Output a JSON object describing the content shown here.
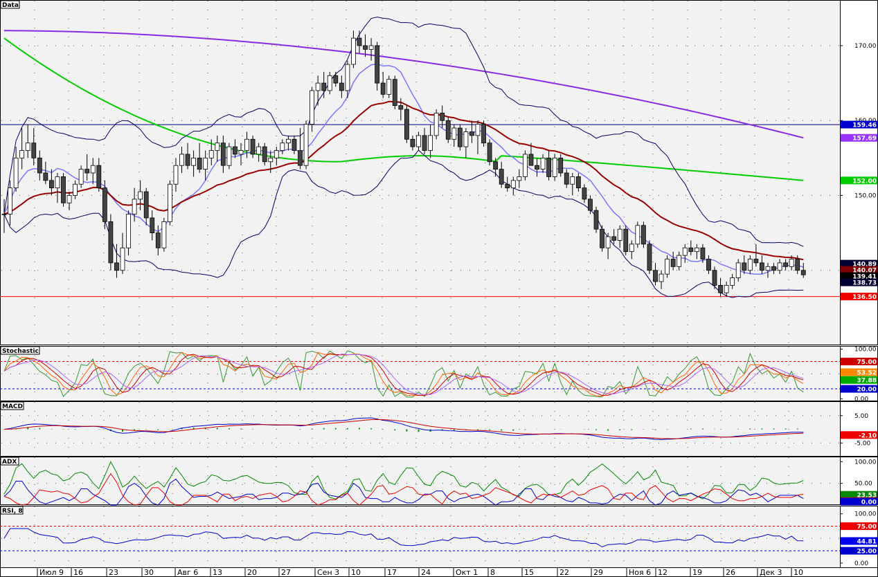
{
  "chart_data": [
    {
      "panel": "Data",
      "type": "candlestick",
      "title": "Data",
      "ylim": [
        130,
        176
      ],
      "y_ticks": [
        150.0,
        160.0,
        170.0
      ],
      "candles": [
        [
          147.5,
          149.5,
          145.0,
          147.5
        ],
        [
          147.5,
          152.0,
          146.0,
          151.0
        ],
        [
          151.0,
          156.5,
          150.5,
          155.0
        ],
        [
          155.0,
          159.0,
          153.5,
          156.0
        ],
        [
          156.0,
          159.5,
          155.0,
          157.0
        ],
        [
          157.0,
          159.0,
          154.0,
          155.0
        ],
        [
          155.0,
          156.0,
          152.0,
          153.0
        ],
        [
          153.0,
          154.5,
          151.5,
          152.0
        ],
        [
          152.0,
          153.5,
          150.0,
          151.0
        ],
        [
          151.0,
          153.0,
          149.0,
          152.5
        ],
        [
          152.5,
          153.0,
          148.5,
          149.0
        ],
        [
          149.0,
          150.5,
          148.0,
          150.0
        ],
        [
          150.0,
          152.0,
          149.5,
          151.5
        ],
        [
          151.5,
          154.0,
          151.0,
          153.5
        ],
        [
          153.5,
          155.5,
          152.0,
          153.0
        ],
        [
          153.0,
          155.0,
          151.5,
          154.0
        ],
        [
          154.0,
          155.0,
          150.5,
          151.0
        ],
        [
          151.0,
          152.0,
          145.5,
          146.5
        ],
        [
          146.5,
          147.5,
          140.0,
          141.0
        ],
        [
          141.0,
          143.5,
          139.0,
          140.0
        ],
        [
          140.0,
          145.0,
          139.5,
          143.0
        ],
        [
          143.0,
          148.0,
          142.0,
          147.5
        ],
        [
          147.5,
          151.0,
          146.5,
          149.5
        ],
        [
          149.5,
          152.0,
          148.0,
          150.5
        ],
        [
          150.5,
          151.0,
          146.0,
          147.0
        ],
        [
          147.0,
          148.0,
          144.0,
          145.0
        ],
        [
          145.0,
          146.0,
          142.0,
          143.0
        ],
        [
          143.0,
          147.0,
          142.5,
          146.5
        ],
        [
          146.5,
          152.0,
          146.0,
          151.5
        ],
        [
          151.5,
          155.0,
          150.5,
          154.0
        ],
        [
          154.0,
          156.5,
          153.0,
          155.5
        ],
        [
          155.5,
          157.0,
          153.5,
          154.0
        ],
        [
          154.0,
          156.0,
          152.5,
          155.0
        ],
        [
          155.0,
          157.0,
          153.0,
          153.5
        ],
        [
          153.5,
          156.0,
          152.0,
          155.0
        ],
        [
          155.0,
          157.5,
          154.0,
          156.0
        ],
        [
          156.0,
          158.0,
          154.5,
          157.0
        ],
        [
          157.0,
          158.0,
          153.0,
          154.0
        ],
        [
          154.0,
          157.0,
          153.5,
          156.5
        ],
        [
          156.5,
          157.5,
          155.0,
          155.5
        ],
        [
          155.5,
          157.0,
          154.0,
          156.0
        ],
        [
          156.0,
          158.5,
          155.0,
          157.5
        ],
        [
          157.5,
          158.0,
          155.0,
          155.5
        ],
        [
          155.5,
          157.0,
          154.5,
          156.5
        ],
        [
          156.5,
          157.0,
          154.0,
          154.5
        ],
        [
          154.5,
          156.0,
          153.0,
          155.0
        ],
        [
          155.0,
          156.5,
          154.0,
          156.0
        ],
        [
          156.0,
          157.5,
          155.5,
          157.0
        ],
        [
          157.0,
          158.0,
          156.0,
          157.5
        ],
        [
          157.5,
          158.0,
          155.5,
          156.0
        ],
        [
          156.0,
          159.0,
          153.5,
          154.0
        ],
        [
          154.0,
          160.0,
          153.5,
          159.5
        ],
        [
          159.5,
          164.5,
          158.5,
          164.0
        ],
        [
          164.0,
          166.0,
          162.0,
          165.0
        ],
        [
          165.0,
          166.5,
          163.0,
          164.0
        ],
        [
          164.0,
          166.5,
          163.5,
          166.0
        ],
        [
          166.0,
          166.5,
          164.5,
          165.0
        ],
        [
          165.0,
          166.0,
          163.0,
          164.0
        ],
        [
          164.0,
          168.0,
          163.0,
          167.5
        ],
        [
          167.5,
          172.0,
          167.0,
          171.0
        ],
        [
          171.0,
          172.0,
          169.0,
          170.0
        ],
        [
          170.0,
          171.5,
          168.5,
          169.5
        ],
        [
          169.5,
          171.0,
          168.0,
          170.0
        ],
        [
          170.0,
          170.5,
          164.0,
          165.0
        ],
        [
          165.0,
          166.5,
          163.0,
          163.5
        ],
        [
          163.5,
          166.0,
          163.0,
          165.5
        ],
        [
          165.5,
          166.0,
          161.5,
          162.0
        ],
        [
          162.0,
          163.0,
          160.0,
          161.5
        ],
        [
          161.5,
          162.0,
          157.0,
          157.5
        ],
        [
          157.5,
          158.0,
          156.0,
          156.5
        ],
        [
          156.5,
          158.5,
          156.0,
          158.0
        ],
        [
          158.0,
          159.0,
          155.5,
          156.0
        ],
        [
          156.0,
          159.5,
          155.0,
          158.0
        ],
        [
          158.0,
          161.5,
          157.5,
          161.0
        ],
        [
          161.0,
          162.0,
          159.0,
          160.0
        ],
        [
          160.0,
          160.5,
          157.0,
          157.5
        ],
        [
          157.5,
          159.5,
          156.5,
          159.0
        ],
        [
          159.0,
          159.5,
          156.0,
          156.5
        ],
        [
          156.5,
          159.0,
          155.0,
          158.5
        ],
        [
          158.5,
          160.0,
          157.0,
          158.0
        ],
        [
          158.0,
          160.0,
          155.5,
          159.5
        ],
        [
          159.5,
          160.0,
          156.5,
          157.0
        ],
        [
          157.0,
          157.5,
          154.0,
          154.5
        ],
        [
          154.5,
          155.0,
          152.5,
          153.5
        ],
        [
          153.5,
          154.5,
          151.0,
          151.5
        ],
        [
          151.5,
          152.5,
          150.5,
          151.0
        ],
        [
          151.0,
          152.5,
          150.0,
          152.0
        ],
        [
          152.0,
          153.5,
          151.0,
          152.5
        ],
        [
          152.5,
          156.0,
          152.0,
          155.5
        ],
        [
          155.5,
          157.0,
          154.0,
          154.0
        ],
        [
          154.0,
          155.0,
          152.5,
          153.5
        ],
        [
          153.5,
          155.5,
          153.0,
          155.0
        ],
        [
          155.0,
          156.0,
          152.0,
          152.5
        ],
        [
          152.5,
          155.5,
          152.0,
          155.0
        ],
        [
          155.0,
          155.5,
          152.5,
          153.0
        ],
        [
          153.0,
          153.5,
          151.0,
          151.5
        ],
        [
          151.5,
          153.0,
          150.0,
          152.5
        ],
        [
          152.5,
          153.0,
          150.5,
          151.0
        ],
        [
          151.0,
          151.5,
          149.0,
          149.5
        ],
        [
          149.5,
          150.0,
          147.5,
          148.0
        ],
        [
          148.0,
          148.5,
          145.0,
          145.5
        ],
        [
          145.5,
          146.0,
          142.5,
          143.0
        ],
        [
          143.0,
          145.0,
          141.5,
          144.5
        ],
        [
          144.5,
          145.5,
          143.5,
          144.0
        ],
        [
          144.0,
          146.0,
          143.0,
          145.5
        ],
        [
          145.5,
          146.0,
          142.0,
          142.5
        ],
        [
          142.5,
          144.0,
          141.5,
          143.5
        ],
        [
          143.5,
          146.5,
          143.0,
          146.0
        ],
        [
          146.0,
          146.5,
          143.0,
          143.5
        ],
        [
          143.5,
          144.0,
          139.5,
          140.0
        ],
        [
          140.0,
          141.0,
          138.0,
          138.5
        ],
        [
          138.5,
          140.0,
          137.5,
          139.5
        ],
        [
          139.5,
          142.0,
          139.0,
          141.5
        ],
        [
          141.5,
          142.5,
          140.0,
          140.5
        ],
        [
          140.5,
          142.5,
          140.0,
          142.0
        ],
        [
          142.0,
          143.5,
          141.0,
          143.0
        ],
        [
          143.0,
          144.0,
          142.0,
          142.5
        ],
        [
          142.5,
          143.5,
          141.5,
          143.0
        ],
        [
          143.0,
          143.5,
          141.0,
          141.5
        ],
        [
          141.5,
          142.0,
          139.5,
          140.0
        ],
        [
          140.0,
          140.5,
          137.5,
          138.0
        ],
        [
          138.0,
          139.0,
          136.5,
          137.0
        ],
        [
          137.0,
          138.5,
          136.5,
          138.0
        ],
        [
          138.0,
          139.5,
          137.5,
          139.0
        ],
        [
          139.0,
          141.5,
          138.5,
          141.0
        ],
        [
          141.0,
          142.0,
          139.5,
          140.0
        ],
        [
          140.0,
          142.0,
          139.5,
          141.5
        ],
        [
          141.5,
          143.5,
          140.5,
          141.0
        ],
        [
          141.0,
          142.0,
          139.5,
          140.0
        ],
        [
          140.0,
          141.0,
          139.0,
          140.5
        ],
        [
          140.5,
          141.0,
          139.5,
          140.0
        ],
        [
          140.0,
          141.5,
          139.5,
          141.0
        ],
        [
          141.0,
          141.5,
          140.0,
          140.5
        ],
        [
          140.5,
          142.0,
          140.0,
          141.5
        ],
        [
          141.5,
          142.0,
          139.5,
          140.0
        ],
        [
          140.0,
          141.0,
          139.0,
          139.4
        ]
      ],
      "sma_long": {
        "name": "",
        "color": "#8a2be2",
        "start": 172.0,
        "end": 157.69
      },
      "sma_mid": {
        "name": "",
        "color": "#00cc00",
        "start": 171.0,
        "end": 152.0
      },
      "hlines": [
        {
          "value": 159.46,
          "color": "#000080"
        },
        {
          "value": 136.5,
          "color": "#ff0000"
        }
      ],
      "markers": [
        {
          "value": "159.46",
          "num": 159.46,
          "color": "#0000cc"
        },
        {
          "value": "157.69",
          "num": 157.69,
          "color": "#9933ff"
        },
        {
          "value": "152.00",
          "num": 152.0,
          "color": "#00cc00"
        },
        {
          "value": "140.89",
          "num": 140.89,
          "color": "#000033"
        },
        {
          "value": "140.07",
          "num": 140.07,
          "color": "#800000"
        },
        {
          "value": "139.41",
          "num": 139.41,
          "color": "#000000"
        },
        {
          "value": "138.73",
          "num": 138.73,
          "color": "#000033"
        },
        {
          "value": "136.50",
          "num": 136.5,
          "color": "#ee0000"
        }
      ]
    },
    {
      "panel": "Stochastic",
      "type": "line",
      "title": "Stochastic",
      "ylim": [
        -5,
        105
      ],
      "y_ticks": [
        "100.00",
        "0.00"
      ],
      "levels": [
        {
          "value": 75,
          "color": "#cc0000"
        },
        {
          "value": 20,
          "color": "#0000cc"
        }
      ],
      "markers": [
        {
          "value": "75.00",
          "num": 75,
          "color": "#cc0000"
        },
        {
          "value": "53.52",
          "num": 53.52,
          "color": "#ff8800"
        },
        {
          "value": "37.88",
          "num": 37.88,
          "color": "#00aa00"
        },
        {
          "value": "20.00",
          "num": 20,
          "color": "#0000cc"
        }
      ]
    },
    {
      "panel": "MACD",
      "type": "line",
      "title": "MACD",
      "ylim": [
        -10,
        10
      ],
      "y_ticks": [
        "5.00",
        "-5.00"
      ],
      "markers": [
        {
          "value": "-2.10",
          "num": -2.1,
          "color": "#ee0000"
        }
      ]
    },
    {
      "panel": "ADX",
      "type": "line",
      "title": "ADX",
      "ylim": [
        0,
        110
      ],
      "y_ticks": [
        "100.00",
        "50.00"
      ],
      "markers": [
        {
          "value": "23.53",
          "num": 23.53,
          "color": "#008800"
        },
        {
          "value": "13.27",
          "num": 13.27,
          "color": "#ee0000"
        },
        {
          "value": "0.00",
          "num": 0,
          "color": "#0000cc"
        }
      ]
    },
    {
      "panel": "RSI",
      "type": "line",
      "title": "RSI, 8",
      "ylim": [
        -10,
        115
      ],
      "y_ticks": [
        "100.00",
        "0.00"
      ],
      "levels": [
        {
          "value": 75,
          "color": "#cc0000"
        },
        {
          "value": 25,
          "color": "#0000cc"
        }
      ],
      "markers": [
        {
          "value": "75.00",
          "num": 75,
          "color": "#ee0000"
        },
        {
          "value": "44.81",
          "num": 44.81,
          "color": "#0000ee"
        },
        {
          "value": "25.00",
          "num": 25,
          "color": "#0000cc"
        }
      ]
    }
  ],
  "x_axis": {
    "labels": [
      "Июл 9",
      "16",
      "23",
      "30",
      "Авг 6",
      "13",
      "20",
      "27",
      "Сен 3",
      "10",
      "17",
      "24",
      "Окт 1",
      "8",
      "15",
      "22",
      "29",
      "Ноя 6",
      "12",
      "19",
      "26",
      "Дек 3",
      "10"
    ]
  },
  "colors": {
    "candle_up": "#ffffff",
    "candle_down": "#444444",
    "bollinger": "#000066",
    "sma_fast": "#7777ff",
    "ema_red": "#990000"
  }
}
